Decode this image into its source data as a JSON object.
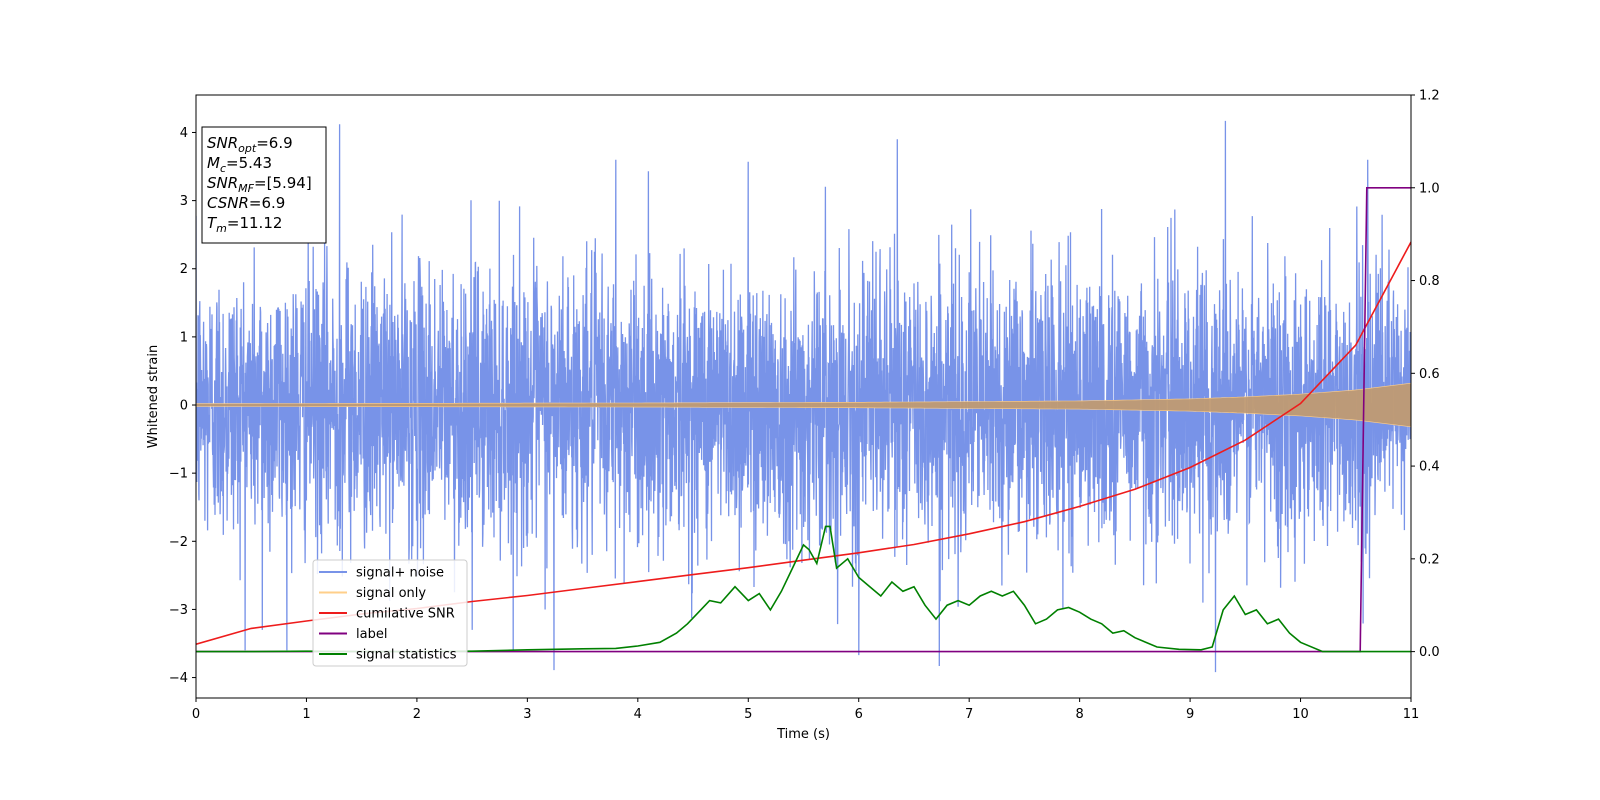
{
  "chart_data": {
    "type": "line",
    "xlabel": "Time (s)",
    "ylabel": "Whitened strain",
    "xlim": [
      0,
      11
    ],
    "ylim": [
      -4.3,
      4.55
    ],
    "y2lim": [
      -0.1,
      1.2
    ],
    "xticks": [
      0,
      1,
      2,
      3,
      4,
      5,
      6,
      7,
      8,
      9,
      10,
      11
    ],
    "yticks": [
      -4,
      -3,
      -2,
      -1,
      0,
      1,
      2,
      3,
      4
    ],
    "y2ticks": [
      "0.0",
      "0.2",
      "0.4",
      "0.6",
      "0.8",
      "1.0",
      "1.2"
    ],
    "legend_position": "lower-left",
    "grid": false,
    "annotation": {
      "lines": [
        {
          "var": "SNR",
          "sub": "opt",
          "value": "=6.9"
        },
        {
          "var": "M",
          "sub": "c",
          "value": "=5.43"
        },
        {
          "var": "SNR",
          "sub": "MF",
          "value": "=[5.94]"
        },
        {
          "var": "CSNR",
          "sub": "",
          "value": "=6.9"
        },
        {
          "var": "T",
          "sub": "m",
          "value": "=11.12"
        }
      ]
    },
    "series": [
      {
        "name": "signal+ noise",
        "color": "#7893e8",
        "axis": "left",
        "noise_sigma": 1.0,
        "spike_peaks": [
          {
            "x": 1.3,
            "y": 4.12
          },
          {
            "x": 9.32,
            "y": 4.17
          },
          {
            "x": 6.0,
            "y": 3.86
          },
          {
            "x": 6.35,
            "y": 3.9
          },
          {
            "x": 3.8,
            "y": 3.6
          },
          {
            "x": 5.0,
            "y": 3.57
          },
          {
            "x": 3.24,
            "y": -3.89
          },
          {
            "x": 9.23,
            "y": -3.92
          },
          {
            "x": 6.73,
            "y": -3.83
          },
          {
            "x": 6.0,
            "y": -3.67
          },
          {
            "x": 0.6,
            "y": -3.3
          },
          {
            "x": 2.5,
            "y": -3.3
          }
        ]
      },
      {
        "name": "signal only",
        "color": "#ffcf8a",
        "axis": "left",
        "envelope": {
          "x": [
            0,
            2,
            4,
            6,
            7,
            8,
            9,
            9.5,
            10,
            10.5,
            11
          ],
          "y": [
            0.02,
            0.025,
            0.03,
            0.04,
            0.05,
            0.06,
            0.09,
            0.12,
            0.16,
            0.22,
            0.32
          ]
        }
      },
      {
        "name": "cumilative SNR",
        "color": "#ee1c1c",
        "axis": "right",
        "x": [
          0,
          0.5,
          1,
          1.5,
          2,
          2.5,
          3,
          3.5,
          4,
          4.5,
          5,
          5.5,
          6,
          6.5,
          7,
          7.5,
          8,
          8.5,
          9,
          9.5,
          10,
          10.5,
          11
        ],
        "y": [
          0.016,
          0.05,
          0.066,
          0.081,
          0.093,
          0.108,
          0.121,
          0.136,
          0.151,
          0.166,
          0.181,
          0.197,
          0.213,
          0.231,
          0.254,
          0.28,
          0.313,
          0.35,
          0.397,
          0.456,
          0.535,
          0.661,
          0.883
        ]
      },
      {
        "name": "label",
        "color": "#800080",
        "axis": "right",
        "x": [
          0,
          10.54,
          10.6,
          11
        ],
        "y": [
          0,
          0,
          1,
          1
        ]
      },
      {
        "name": "signal statistics",
        "color": "#008000",
        "axis": "right",
        "x": [
          0,
          0.5,
          1,
          1.5,
          2,
          2.5,
          3,
          3.5,
          3.8,
          4.0,
          4.2,
          4.35,
          4.45,
          4.55,
          4.65,
          4.75,
          4.88,
          5.0,
          5.1,
          5.2,
          5.3,
          5.4,
          5.5,
          5.55,
          5.62,
          5.7,
          5.74,
          5.8,
          5.9,
          6.0,
          6.1,
          6.2,
          6.3,
          6.4,
          6.5,
          6.6,
          6.7,
          6.8,
          6.9,
          7.0,
          7.1,
          7.2,
          7.3,
          7.4,
          7.5,
          7.6,
          7.7,
          7.8,
          7.9,
          8.0,
          8.1,
          8.2,
          8.3,
          8.4,
          8.5,
          8.7,
          8.9,
          9.1,
          9.2,
          9.3,
          9.4,
          9.5,
          9.6,
          9.7,
          9.8,
          9.9,
          10.0,
          10.2,
          10.5,
          10.54,
          10.7,
          11.0
        ],
        "y": [
          0.0,
          0.0,
          0.001,
          0.0,
          0.0,
          0.001,
          0.004,
          0.006,
          0.007,
          0.012,
          0.02,
          0.04,
          0.06,
          0.085,
          0.11,
          0.105,
          0.14,
          0.11,
          0.125,
          0.09,
          0.13,
          0.18,
          0.23,
          0.22,
          0.19,
          0.27,
          0.27,
          0.18,
          0.2,
          0.16,
          0.14,
          0.12,
          0.15,
          0.13,
          0.14,
          0.1,
          0.07,
          0.1,
          0.11,
          0.1,
          0.12,
          0.13,
          0.12,
          0.13,
          0.1,
          0.06,
          0.07,
          0.09,
          0.095,
          0.085,
          0.07,
          0.06,
          0.04,
          0.045,
          0.03,
          0.01,
          0.005,
          0.004,
          0.01,
          0.09,
          0.12,
          0.08,
          0.09,
          0.06,
          0.07,
          0.04,
          0.02,
          0.0,
          0.0,
          0.0,
          0.0,
          0.0
        ]
      }
    ]
  }
}
